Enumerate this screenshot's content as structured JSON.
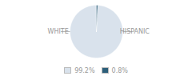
{
  "chart_data": {
    "type": "pie",
    "categories": [
      "WHITE",
      "HISPANIC"
    ],
    "values": [
      99.2,
      0.8
    ],
    "value_labels": [
      "99.2%",
      "0.8%"
    ],
    "colors": [
      "#d9e2ec",
      "#2d5f7a"
    ],
    "legend": "bottom"
  }
}
